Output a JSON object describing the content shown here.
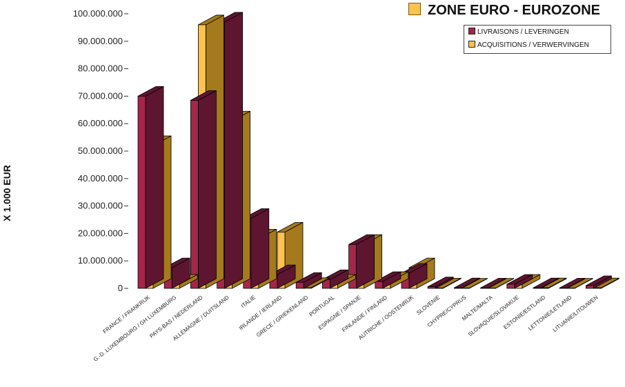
{
  "chart_data": {
    "type": "bar",
    "title": "ZONE EURO -  EUROZONE",
    "ylabel": "X 1.000 EUR",
    "xlabel": "",
    "ylim": [
      0,
      100000000
    ],
    "yticks": [
      "0",
      "10.000.000",
      "20.000.000",
      "30.000.000",
      "40.000.000",
      "50.000.000",
      "60.000.000",
      "70.000.000",
      "80.000.000",
      "90.000.000",
      "100.000.000"
    ],
    "categories": [
      "FRANCE / FRANKRIJK",
      "G.-D. LUXEMBOURG / GH LUXEMBURG",
      "PAYS-BAS / NEDERLAND",
      "ALLEMAGNE / DUITSLAND",
      "ITALIE",
      "IRLANDE / IERLAND",
      "GRECE / GRIEKENLAND",
      "PORTUGAL",
      "ESPAGNE / SPANJE",
      "FINLANDE / FINLAND",
      "AUTRICHE / OOSTENRIJK",
      "SLOVENIE",
      "CHYPRE/CYPRUS",
      "MALTE/MALTA",
      "SLOVAQUIE/SLOVAKIJE",
      "ESTONIE/ESTLAND",
      "LETTONIE/LETLAND",
      "LITUANIE/LITOUWEN"
    ],
    "series": [
      {
        "name": "LIVRAISONS / LEVERINGEN",
        "color": "#a4264a",
        "values": [
          70000000,
          7500000,
          68500000,
          97000000,
          25500000,
          5000000,
          2200000,
          3200000,
          16000000,
          2500000,
          5500000,
          600000,
          200000,
          150000,
          1500000,
          200000,
          150000,
          1000000
        ]
      },
      {
        "name": "ACQUISITIONS / VERWERVINGEN",
        "color": "#fdc24f",
        "values": [
          52000000,
          1500000,
          96000000,
          61000000,
          18000000,
          20500000,
          300000,
          1500000,
          16000000,
          2500000,
          7500000,
          150000,
          100000,
          100000,
          1500000,
          200000,
          100000,
          200000
        ]
      }
    ],
    "grid": false,
    "legend": "top-right"
  },
  "colors": {
    "livraisons_front": "#a4264a",
    "livraisons_side": "#5e1530",
    "acquisitions_front": "#fdc24f",
    "acquisitions_side": "#a57a1c"
  }
}
